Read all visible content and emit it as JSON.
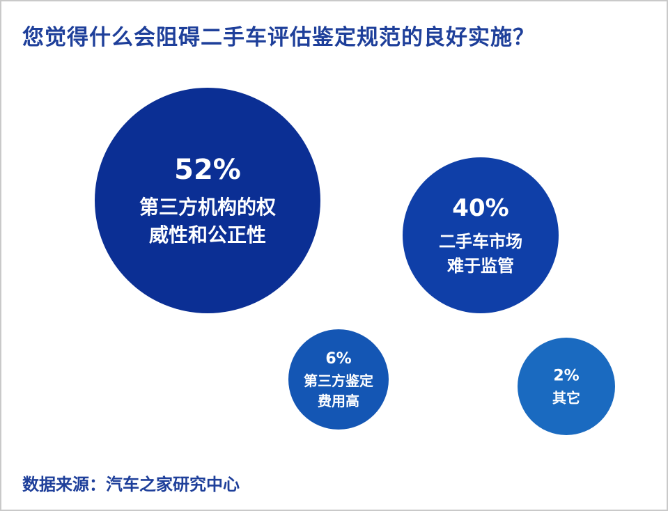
{
  "title": "您觉得什么会阻碍二手车评估鉴定规范的良好实施？",
  "source": "数据来源：汽车之家研究中心",
  "chart_data": {
    "type": "bubble",
    "title": "您觉得什么会阻碍二手车评估鉴定规范的良好实施？",
    "items": [
      {
        "value_label": "52%",
        "value": 52,
        "label_lines": [
          "第三方机构的权",
          "威性和公正性"
        ],
        "color": "#0b2f94"
      },
      {
        "value_label": "40%",
        "value": 40,
        "label_lines": [
          "二手车市场",
          "难于监管"
        ],
        "color": "#0f3fa8"
      },
      {
        "value_label": "6%",
        "value": 6,
        "label_lines": [
          "第三方鉴定",
          "费用高"
        ],
        "color": "#1456b4"
      },
      {
        "value_label": "2%",
        "value": 2,
        "label_lines": [
          "其它"
        ],
        "color": "#1a6ac0"
      }
    ]
  }
}
